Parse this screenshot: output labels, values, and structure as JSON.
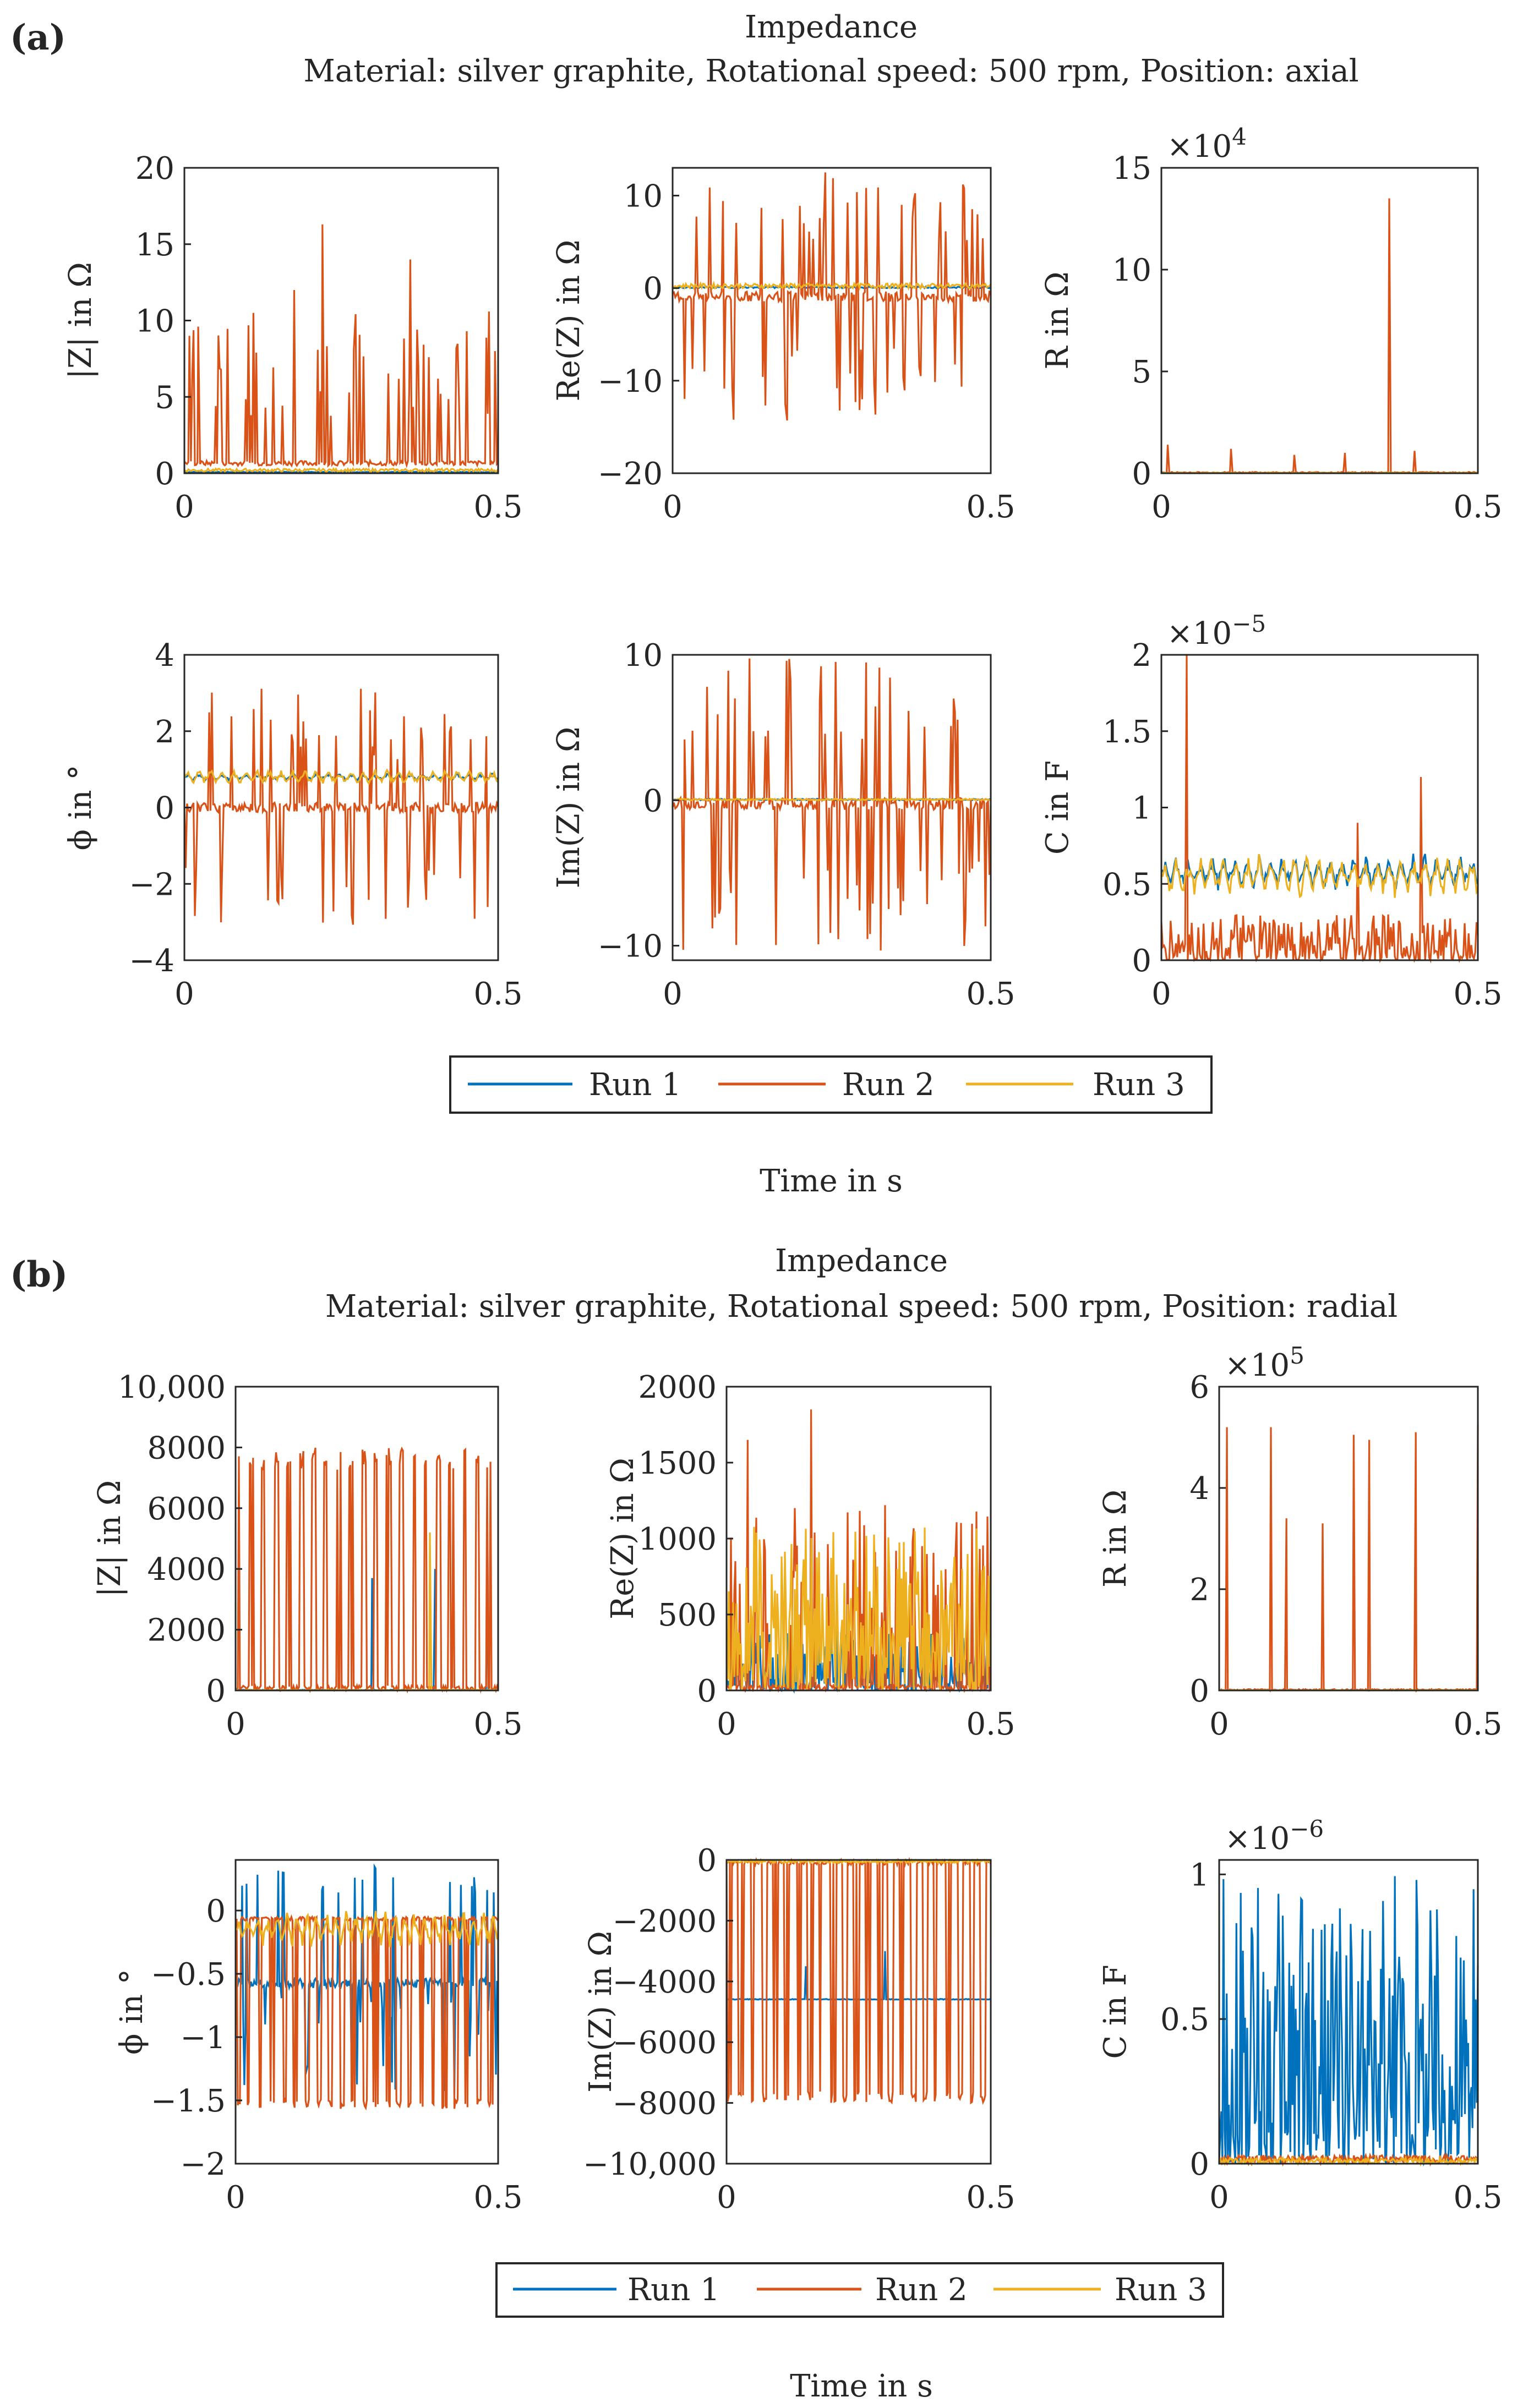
{
  "colors": {
    "run1": "#0072BD",
    "run2": "#D95319",
    "run3": "#EDB120",
    "axis": "#262626",
    "background": "#ffffff"
  },
  "panels": [
    {
      "label": "(a)",
      "title": "Impedance",
      "subtitle": "Material: silver graphite, Rotational speed: 500 rpm, Position: axial",
      "legend": [
        "Run 1",
        "Run 2",
        "Run 3"
      ],
      "common_xlabel": "Time in s"
    },
    {
      "label": "(b)",
      "title": "Impedance",
      "subtitle": "Material: silver graphite, Rotational speed: 500 rpm, Position: radial",
      "legend": [
        "Run 1",
        "Run 2",
        "Run 3"
      ],
      "common_xlabel": "Time in s"
    }
  ],
  "chart_data": [
    {
      "panel": "(a)",
      "type": "line",
      "ylabel": "|Z| in Ω",
      "xlim": [
        0,
        0.5
      ],
      "ylim": [
        0,
        20
      ],
      "xticks": [
        "0",
        "0.5"
      ],
      "yticks": [
        "0",
        "5",
        "10",
        "15",
        "20"
      ],
      "exponent": "",
      "series": [
        {
          "name": "Run 1",
          "color": "#0072BD",
          "pattern": "flat",
          "values": [
            0.05,
            0.1
          ]
        },
        {
          "name": "Run 2",
          "color": "#D95319",
          "pattern": "spikes",
          "values": [
            0.5,
            16.3
          ],
          "spikes": [
            [
              0.008,
              9.0
            ],
            [
              0.022,
              9.6
            ],
            [
              0.05,
              4.4
            ],
            [
              0.11,
              10.5
            ],
            [
              0.175,
              12.0
            ],
            [
              0.22,
              16.3
            ],
            [
              0.27,
              8.1
            ],
            [
              0.36,
              14.0
            ],
            [
              0.45,
              9.3
            ],
            [
              0.495,
              8.0
            ]
          ]
        },
        {
          "name": "Run 3",
          "color": "#EDB120",
          "pattern": "flat",
          "values": [
            0.1,
            0.3
          ]
        }
      ]
    },
    {
      "panel": "(a)",
      "type": "line",
      "ylabel": "Re(Z) in Ω",
      "xlim": [
        0,
        0.5
      ],
      "ylim": [
        -20,
        13
      ],
      "xticks": [
        "0",
        "0.5"
      ],
      "yticks": [
        "−20",
        "−10",
        "0",
        "10"
      ],
      "exponent": "",
      "series": [
        {
          "name": "Run 1",
          "color": "#0072BD",
          "pattern": "flat",
          "values": [
            0,
            0.2
          ]
        },
        {
          "name": "Run 2",
          "color": "#D95319",
          "pattern": "bipolar",
          "values": [
            -14.3,
            12.5
          ],
          "spikes": [
            [
              0.05,
              -9.0
            ],
            [
              0.18,
              -14.3
            ],
            [
              0.24,
              12.5
            ],
            [
              0.36,
              9.0
            ],
            [
              0.39,
              -9.5
            ]
          ]
        },
        {
          "name": "Run 3",
          "color": "#EDB120",
          "pattern": "flat",
          "values": [
            0,
            0.5
          ]
        }
      ]
    },
    {
      "panel": "(a)",
      "type": "line",
      "ylabel": "R in Ω",
      "xlim": [
        0,
        0.5
      ],
      "ylim": [
        0,
        150000
      ],
      "xticks": [
        "0",
        "0.5"
      ],
      "yticks": [
        "0",
        "5",
        "10",
        "15"
      ],
      "exponent": "×10^4",
      "series": [
        {
          "name": "Run 1",
          "color": "#0072BD",
          "pattern": "flat",
          "values": [
            0,
            200
          ]
        },
        {
          "name": "Run 2",
          "color": "#D95319",
          "pattern": "sparse",
          "values": [
            0,
            135000
          ],
          "spikes": [
            [
              0.01,
              14000
            ],
            [
              0.11,
              12000
            ],
            [
              0.21,
              9000
            ],
            [
              0.29,
              10000
            ],
            [
              0.36,
              135000
            ],
            [
              0.4,
              11000
            ]
          ]
        },
        {
          "name": "Run 3",
          "color": "#EDB120",
          "pattern": "flat",
          "values": [
            0,
            400
          ]
        }
      ]
    },
    {
      "panel": "(a)",
      "type": "line",
      "ylabel": "ϕ in °",
      "xlim": [
        0,
        0.5
      ],
      "ylim": [
        -4,
        4
      ],
      "xticks": [
        "0",
        "0.5"
      ],
      "yticks": [
        "−4",
        "−2",
        "0",
        "2",
        "4"
      ],
      "exponent": "",
      "series": [
        {
          "name": "Run 1",
          "color": "#0072BD",
          "pattern": "band",
          "values": [
            0.7,
            0.9
          ]
        },
        {
          "name": "Run 2",
          "color": "#D95319",
          "pattern": "bipolar",
          "values": [
            -3.14,
            3.14
          ]
        },
        {
          "name": "Run 3",
          "color": "#EDB120",
          "pattern": "band",
          "values": [
            0.6,
            1.0
          ]
        }
      ]
    },
    {
      "panel": "(a)",
      "type": "line",
      "ylabel": "Im(Z) in Ω",
      "xlim": [
        0,
        0.5
      ],
      "ylim": [
        -11,
        10
      ],
      "xticks": [
        "0",
        "0.5"
      ],
      "yticks": [
        "−10",
        "0",
        "10"
      ],
      "exponent": "",
      "series": [
        {
          "name": "Run 1",
          "color": "#0072BD",
          "pattern": "flat",
          "values": [
            0,
            0.1
          ]
        },
        {
          "name": "Run 2",
          "color": "#D95319",
          "pattern": "bipolar",
          "values": [
            -10.5,
            10.0
          ]
        },
        {
          "name": "Run 3",
          "color": "#EDB120",
          "pattern": "flat",
          "values": [
            0,
            0.1
          ]
        }
      ]
    },
    {
      "panel": "(a)",
      "type": "line",
      "ylabel": "C in F",
      "xlim": [
        0,
        0.5
      ],
      "ylim": [
        0,
        2e-05
      ],
      "xticks": [
        "0",
        "0.5"
      ],
      "yticks": [
        "0",
        "0.5",
        "1",
        "1.5",
        "2"
      ],
      "exponent": "×10^−5",
      "series": [
        {
          "name": "Run 1",
          "color": "#0072BD",
          "pattern": "band",
          "values": [
            4.5e-06,
            7e-06
          ]
        },
        {
          "name": "Run 2",
          "color": "#D95319",
          "pattern": "noise",
          "values": [
            0,
            3e-06
          ],
          "spikes": [
            [
              0.04,
              2e-05
            ],
            [
              0.31,
              9e-06
            ],
            [
              0.41,
              1.2e-05
            ]
          ]
        },
        {
          "name": "Run 3",
          "color": "#EDB120",
          "pattern": "band",
          "values": [
            4e-06,
            7e-06
          ]
        }
      ]
    },
    {
      "panel": "(b)",
      "type": "line",
      "ylabel": "|Z| in Ω",
      "xlim": [
        0,
        0.5
      ],
      "ylim": [
        0,
        10000
      ],
      "xticks": [
        "0",
        "0.5"
      ],
      "yticks": [
        "0",
        "2000",
        "4000",
        "6000",
        "8000",
        "10,000"
      ],
      "exponent": "",
      "series": [
        {
          "name": "Run 1",
          "color": "#0072BD",
          "pattern": "sparse",
          "values": [
            0,
            4600
          ],
          "spikes": [
            [
              0.26,
              3700
            ],
            [
              0.38,
              4000
            ],
            [
              0.48,
              4600
            ]
          ]
        },
        {
          "name": "Run 2",
          "color": "#D95319",
          "pattern": "square",
          "values": [
            0,
            8000
          ]
        },
        {
          "name": "Run 3",
          "color": "#EDB120",
          "pattern": "sparse",
          "values": [
            0,
            5200
          ],
          "spikes": [
            [
              0.37,
              5200
            ]
          ]
        }
      ]
    },
    {
      "panel": "(b)",
      "type": "line",
      "ylabel": "Re(Z) in Ω",
      "xlim": [
        0,
        0.5
      ],
      "ylim": [
        0,
        2000
      ],
      "xticks": [
        "0",
        "0.5"
      ],
      "yticks": [
        "0",
        "500",
        "1000",
        "1500",
        "2000"
      ],
      "exponent": "",
      "series": [
        {
          "name": "Run 1",
          "color": "#0072BD",
          "pattern": "noise",
          "values": [
            0,
            400
          ]
        },
        {
          "name": "Run 2",
          "color": "#D95319",
          "pattern": "spikes",
          "values": [
            0,
            1850
          ],
          "spikes": [
            [
              0.04,
              1650
            ],
            [
              0.16,
              1850
            ],
            [
              0.3,
              1220
            ],
            [
              0.37,
              950
            ]
          ]
        },
        {
          "name": "Run 3",
          "color": "#EDB120",
          "pattern": "noise",
          "values": [
            0,
            1100
          ]
        }
      ]
    },
    {
      "panel": "(b)",
      "type": "line",
      "ylabel": "R in Ω",
      "xlim": [
        0,
        0.5
      ],
      "ylim": [
        0,
        600000
      ],
      "xticks": [
        "0",
        "0.5"
      ],
      "yticks": [
        "0",
        "2",
        "4",
        "6"
      ],
      "exponent": "×10^5",
      "series": [
        {
          "name": "Run 1",
          "color": "#0072BD",
          "pattern": "flat",
          "values": [
            0,
            1000
          ]
        },
        {
          "name": "Run 2",
          "color": "#D95319",
          "pattern": "sparse",
          "values": [
            0,
            520000
          ],
          "spikes": [
            [
              0.015,
              520000
            ],
            [
              0.1,
              520000
            ],
            [
              0.13,
              340000
            ],
            [
              0.2,
              330000
            ],
            [
              0.26,
              505000
            ],
            [
              0.29,
              495000
            ],
            [
              0.38,
              510000
            ],
            [
              0.5,
              525000
            ]
          ]
        },
        {
          "name": "Run 3",
          "color": "#EDB120",
          "pattern": "flat",
          "values": [
            0,
            1000
          ]
        }
      ]
    },
    {
      "panel": "(b)",
      "type": "line",
      "ylabel": "ϕ in °",
      "xlim": [
        0,
        0.5
      ],
      "ylim": [
        -2,
        0.4
      ],
      "xticks": [
        "0",
        "0.5"
      ],
      "yticks": [
        "−2",
        "−1.5",
        "−1",
        "−0.5",
        "0"
      ],
      "exponent": "",
      "series": [
        {
          "name": "Run 1",
          "color": "#0072BD",
          "pattern": "bipolar",
          "values": [
            -1.5,
            0.35
          ]
        },
        {
          "name": "Run 2",
          "color": "#D95319",
          "pattern": "square-neg",
          "values": [
            -1.57,
            -0.05
          ]
        },
        {
          "name": "Run 3",
          "color": "#EDB120",
          "pattern": "band",
          "values": [
            -0.3,
            0.0
          ]
        }
      ]
    },
    {
      "panel": "(b)",
      "type": "line",
      "ylabel": "Im(Z) in Ω",
      "xlim": [
        0,
        0.5
      ],
      "ylim": [
        -10000,
        0
      ],
      "xticks": [
        "0",
        "0.5"
      ],
      "yticks": [
        "−10,000",
        "−8000",
        "−6000",
        "−4000",
        "−2000",
        "0"
      ],
      "exponent": "",
      "series": [
        {
          "name": "Run 1",
          "color": "#0072BD",
          "pattern": "sparse",
          "values": [
            -4600,
            0
          ],
          "spikes": [
            [
              0.15,
              -3500
            ],
            [
              0.3,
              -3000
            ],
            [
              0.48,
              -4600
            ]
          ]
        },
        {
          "name": "Run 2",
          "color": "#D95319",
          "pattern": "square-neg",
          "values": [
            -8000,
            0
          ]
        },
        {
          "name": "Run 3",
          "color": "#EDB120",
          "pattern": "flat",
          "values": [
            -100,
            0
          ]
        }
      ]
    },
    {
      "panel": "(b)",
      "type": "line",
      "ylabel": "C in F",
      "xlim": [
        0,
        0.5
      ],
      "ylim": [
        0,
        1.05e-06
      ],
      "xticks": [
        "0",
        "0.5"
      ],
      "yticks": [
        "0",
        "0.5",
        "1"
      ],
      "exponent": "×10^−6",
      "series": [
        {
          "name": "Run 1",
          "color": "#0072BD",
          "pattern": "noise",
          "values": [
            0,
            1e-06
          ]
        },
        {
          "name": "Run 2",
          "color": "#D95319",
          "pattern": "flat",
          "values": [
            0,
            3e-08
          ]
        },
        {
          "name": "Run 3",
          "color": "#EDB120",
          "pattern": "flat",
          "values": [
            0,
            2e-08
          ]
        }
      ]
    }
  ]
}
